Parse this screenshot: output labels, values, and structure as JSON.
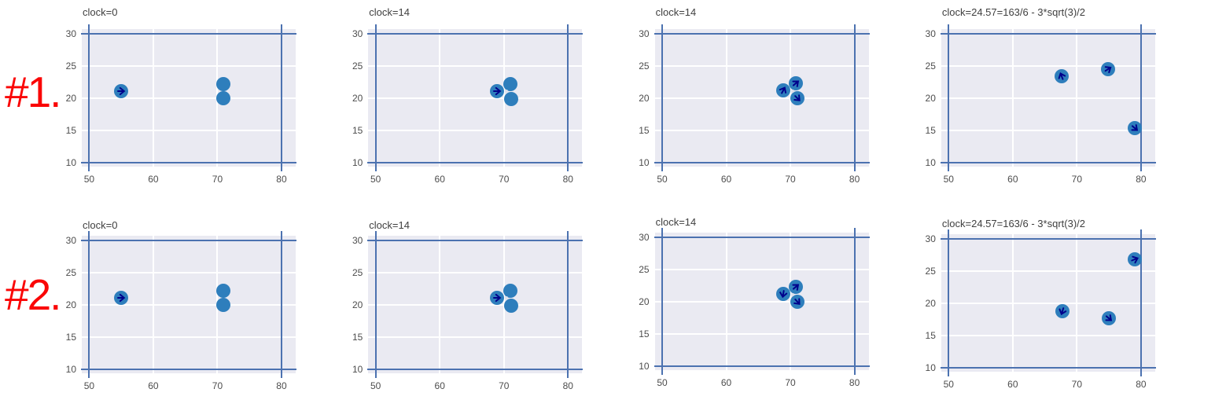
{
  "figure": {
    "background": "#ffffff",
    "panel_bg": "#eaeaf2",
    "grid_color": "#ffffff",
    "frame_color": "#4c72b0",
    "point_color": "#2e7ebc",
    "arrow_color": "#00008b",
    "center_dot_color": "#dce0ec",
    "tick_color": "#4d4d4d",
    "title_color": "#3f3f3f",
    "row_label_color": "#fa0606"
  },
  "row_labels": [
    {
      "text": "#1."
    },
    {
      "text": "#2."
    }
  ],
  "chart_data": [
    {
      "type": "scatter",
      "row": 1,
      "col": 1,
      "title": "clock=0",
      "xlim": [
        50,
        80
      ],
      "ylim": [
        10,
        30
      ],
      "xticks": [
        50,
        60,
        70,
        80
      ],
      "yticks": [
        30,
        25,
        20,
        15,
        10
      ],
      "grid": true,
      "legend": null,
      "points": [
        {
          "x": 55.0,
          "y": 21.05,
          "heading_deg": 0
        },
        {
          "x": 70.9,
          "y": 22.2,
          "heading_deg": null
        },
        {
          "x": 70.9,
          "y": 19.95,
          "heading_deg": null
        }
      ],
      "center_dot": null
    },
    {
      "type": "scatter",
      "row": 1,
      "col": 2,
      "title": "clock=14",
      "xlim": [
        50,
        80
      ],
      "ylim": [
        10,
        30
      ],
      "xticks": [
        50,
        60,
        70,
        80
      ],
      "yticks": [
        30,
        25,
        20,
        15,
        10
      ],
      "grid": true,
      "legend": null,
      "points": [
        {
          "x": 68.9,
          "y": 21.15,
          "heading_deg": 0
        },
        {
          "x": 71.0,
          "y": 22.25,
          "heading_deg": null
        },
        {
          "x": 71.1,
          "y": 19.9,
          "heading_deg": null
        }
      ],
      "center_dot": {
        "x": 70.4,
        "y": 21.15
      }
    },
    {
      "type": "scatter",
      "row": 1,
      "col": 3,
      "title": "clock=14",
      "xlim": [
        50,
        80
      ],
      "ylim": [
        10,
        30
      ],
      "xticks": [
        50,
        60,
        70,
        80
      ],
      "yticks": [
        30,
        25,
        20,
        15,
        10
      ],
      "grid": true,
      "legend": null,
      "points": [
        {
          "x": 68.9,
          "y": 21.2,
          "heading_deg": 62
        },
        {
          "x": 70.9,
          "y": 22.3,
          "heading_deg": 40
        },
        {
          "x": 71.1,
          "y": 20.0,
          "heading_deg": -45
        }
      ],
      "center_dot": {
        "x": 70.35,
        "y": 21.1
      }
    },
    {
      "type": "scatter",
      "row": 1,
      "col": 4,
      "title": "clock=24.57=163/6 - 3*sqrt(3)/2",
      "xlim": [
        50,
        80
      ],
      "ylim": [
        10,
        30
      ],
      "xticks": [
        50,
        60,
        70,
        80
      ],
      "yticks": [
        30,
        25,
        20,
        15,
        10
      ],
      "grid": true,
      "legend": null,
      "points": [
        {
          "x": 67.6,
          "y": 23.4,
          "heading_deg": 112
        },
        {
          "x": 74.9,
          "y": 24.5,
          "heading_deg": 33
        },
        {
          "x": 79.0,
          "y": 15.4,
          "heading_deg": -40
        }
      ],
      "center_dot": null
    },
    {
      "type": "scatter",
      "row": 2,
      "col": 1,
      "title": "clock=0",
      "xlim": [
        50,
        80
      ],
      "ylim": [
        10,
        30
      ],
      "xticks": [
        50,
        60,
        70,
        80
      ],
      "yticks": [
        30,
        25,
        20,
        15,
        10
      ],
      "grid": true,
      "legend": null,
      "points": [
        {
          "x": 55.0,
          "y": 21.05,
          "heading_deg": 0
        },
        {
          "x": 70.9,
          "y": 22.2,
          "heading_deg": null
        },
        {
          "x": 70.9,
          "y": 19.95,
          "heading_deg": null
        }
      ],
      "center_dot": null
    },
    {
      "type": "scatter",
      "row": 2,
      "col": 2,
      "title": "clock=14",
      "xlim": [
        50,
        80
      ],
      "ylim": [
        10,
        30
      ],
      "xticks": [
        50,
        60,
        70,
        80
      ],
      "yticks": [
        30,
        25,
        20,
        15,
        10
      ],
      "grid": true,
      "legend": null,
      "points": [
        {
          "x": 68.9,
          "y": 21.15,
          "heading_deg": 0
        },
        {
          "x": 71.0,
          "y": 22.25,
          "heading_deg": null
        },
        {
          "x": 71.1,
          "y": 19.9,
          "heading_deg": null
        }
      ],
      "center_dot": {
        "x": 70.4,
        "y": 21.15
      }
    },
    {
      "type": "scatter",
      "row": 2,
      "col": 3,
      "title": "clock=14",
      "xlim": [
        50,
        80
      ],
      "ylim": [
        10,
        30
      ],
      "xticks": [
        50,
        60,
        70,
        80
      ],
      "yticks": [
        30,
        25,
        20,
        15,
        10
      ],
      "grid": true,
      "legend": null,
      "points": [
        {
          "x": 68.9,
          "y": 21.2,
          "heading_deg": -100
        },
        {
          "x": 70.9,
          "y": 22.3,
          "heading_deg": 40
        },
        {
          "x": 71.1,
          "y": 20.0,
          "heading_deg": -48
        }
      ],
      "center_dot": {
        "x": 70.35,
        "y": 21.1
      }
    },
    {
      "type": "scatter",
      "row": 2,
      "col": 4,
      "title": "clock=24.57=163/6 - 3*sqrt(3)/2",
      "xlim": [
        50,
        80
      ],
      "ylim": [
        10,
        30
      ],
      "xticks": [
        50,
        60,
        70,
        80
      ],
      "yticks": [
        30,
        25,
        20,
        15,
        10
      ],
      "grid": true,
      "legend": null,
      "points": [
        {
          "x": 79.0,
          "y": 26.8,
          "heading_deg": 22
        },
        {
          "x": 67.7,
          "y": 18.8,
          "heading_deg": -108
        },
        {
          "x": 75.0,
          "y": 17.7,
          "heading_deg": -40
        }
      ],
      "center_dot": null
    }
  ]
}
